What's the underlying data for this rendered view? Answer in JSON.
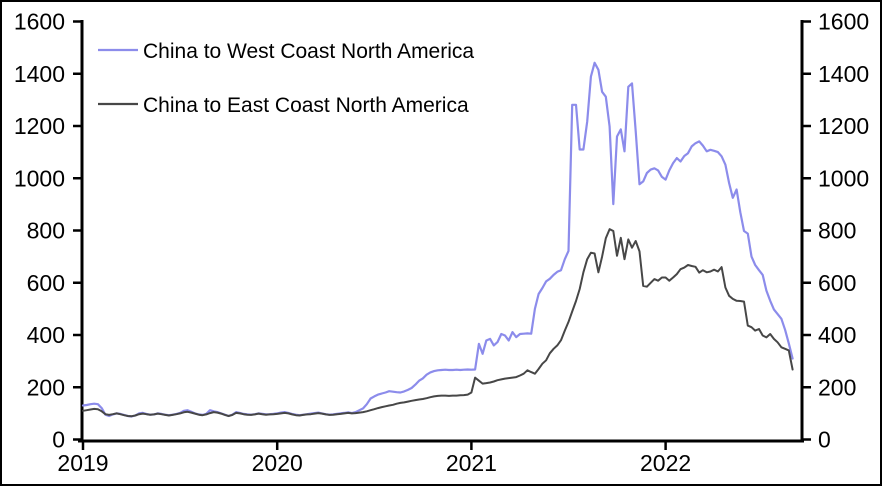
{
  "chart_data": {
    "type": "line",
    "title": "",
    "xlabel": "",
    "ylabel": "",
    "grid": false,
    "legend_position": "top-left",
    "x_start_year": 2019,
    "points_per_year": 52,
    "x_axis": {
      "tick_years": [
        2019,
        2020,
        2021,
        2022
      ],
      "tick_labels": [
        "2019",
        "2020",
        "2021",
        "2022"
      ]
    },
    "y_axis": {
      "min": 0,
      "max": 1600,
      "ticks": [
        0,
        200,
        400,
        600,
        800,
        1000,
        1200,
        1400,
        1600
      ],
      "dual_axis": true
    },
    "series": [
      {
        "name": "China to West Coast North America",
        "color": "#8c8ceb",
        "values": [
          130,
          132,
          135,
          137,
          135,
          120,
          95,
          90,
          96,
          100,
          98,
          94,
          90,
          88,
          92,
          100,
          102,
          98,
          95,
          96,
          100,
          98,
          95,
          93,
          95,
          98,
          102,
          110,
          112,
          106,
          100,
          96,
          94,
          98,
          112,
          108,
          105,
          100,
          95,
          90,
          95,
          105,
          102,
          98,
          96,
          95,
          97,
          100,
          98,
          96,
          97,
          98,
          100,
          103,
          105,
          102,
          98,
          95,
          93,
          95,
          97,
          99,
          101,
          103,
          100,
          97,
          95,
          96,
          98,
          100,
          102,
          104,
          101,
          105,
          112,
          119,
          135,
          157,
          165,
          172,
          176,
          180,
          185,
          183,
          181,
          180,
          184,
          190,
          197,
          210,
          225,
          234,
          248,
          257,
          262,
          265,
          266,
          267,
          266,
          266,
          267,
          266,
          267,
          268,
          267,
          268,
          366,
          328,
          379,
          385,
          360,
          373,
          404,
          398,
          379,
          411,
          392,
          404,
          405,
          406,
          405,
          500,
          557,
          580,
          605,
          615,
          630,
          642,
          648,
          690,
          722,
          1281,
          1281,
          1110,
          1110,
          1217,
          1389,
          1442,
          1415,
          1331,
          1312,
          1198,
          901,
          1160,
          1187,
          1103,
          1350,
          1363,
          1180,
          977,
          988,
          1020,
          1033,
          1038,
          1030,
          1005,
          995,
          1030,
          1058,
          1077,
          1064,
          1085,
          1096,
          1122,
          1134,
          1141,
          1125,
          1103,
          1109,
          1105,
          1100,
          1084,
          1052,
          982,
          925,
          957,
          870,
          798,
          788,
          700,
          668,
          648,
          630,
          570,
          531,
          498,
          480,
          462,
          420,
          368,
          310
        ]
      },
      {
        "name": "China to East Coast North America",
        "color": "#474747",
        "values": [
          110,
          112,
          115,
          117,
          116,
          108,
          97,
          94,
          97,
          100,
          97,
          93,
          90,
          89,
          92,
          97,
          99,
          97,
          95,
          96,
          99,
          97,
          94,
          92,
          94,
          97,
          100,
          104,
          106,
          103,
          99,
          95,
          93,
          96,
          101,
          105,
          103,
          99,
          94,
          90,
          94,
          102,
          100,
          97,
          95,
          94,
          96,
          99,
          97,
          95,
          96,
          97,
          98,
          100,
          102,
          100,
          96,
          93,
          92,
          94,
          96,
          97,
          99,
          101,
          99,
          96,
          94,
          95,
          97,
          98,
          100,
          102,
          100,
          101,
          103,
          105,
          108,
          112,
          116,
          120,
          124,
          127,
          130,
          133,
          137,
          140,
          142,
          145,
          148,
          151,
          153,
          155,
          158,
          162,
          165,
          167,
          168,
          168,
          167,
          168,
          168,
          169,
          170,
          172,
          180,
          237,
          225,
          214,
          216,
          218,
          222,
          227,
          230,
          233,
          235,
          237,
          239,
          245,
          252,
          265,
          258,
          252,
          270,
          290,
          303,
          330,
          347,
          360,
          380,
          417,
          450,
          490,
          530,
          576,
          640,
          690,
          715,
          712,
          640,
          700,
          770,
          805,
          798,
          703,
          772,
          690,
          766,
          734,
          760,
          720,
          588,
          585,
          600,
          614,
          608,
          620,
          620,
          608,
          620,
          633,
          652,
          658,
          668,
          664,
          661,
          639,
          648,
          640,
          643,
          650,
          643,
          660,
          582,
          550,
          538,
          531,
          530,
          528,
          436,
          430,
          417,
          423,
          398,
          391,
          404,
          385,
          372,
          353,
          347,
          341,
          268
        ]
      }
    ]
  },
  "legend": {
    "items": [
      {
        "label": "China to West Coast North America"
      },
      {
        "label": "China to East Coast North America"
      }
    ]
  }
}
